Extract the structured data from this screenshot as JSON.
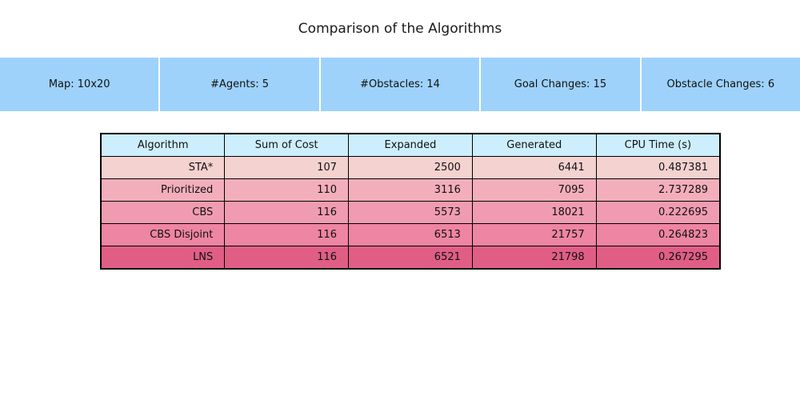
{
  "title": "Comparison of the Algorithms",
  "colors": {
    "info_bar_bg": "#9ed2fb",
    "header_bg": "#cdeefc",
    "border": "#000000",
    "text": "#111111"
  },
  "info_bar": {
    "items": [
      "Map: 10x20",
      "#Agents: 5",
      "#Obstacles: 14",
      "Goal Changes: 15",
      "Obstacle Changes: 6"
    ]
  },
  "table": {
    "headers": [
      "Algorithm",
      "Sum of Cost",
      "Expanded",
      "Generated",
      "CPU Time (s)"
    ],
    "rows": [
      {
        "bg": "#f4d2d0",
        "cells": [
          "STA*",
          "107",
          "2500",
          "6441",
          "0.487381"
        ]
      },
      {
        "bg": "#f3aebb",
        "cells": [
          "Prioritized",
          "110",
          "3116",
          "7095",
          "2.737289"
        ]
      },
      {
        "bg": "#f09cb0",
        "cells": [
          "CBS",
          "116",
          "5573",
          "18021",
          "0.222695"
        ]
      },
      {
        "bg": "#ee85a2",
        "cells": [
          "CBS Disjoint",
          "116",
          "6513",
          "21757",
          "0.264823"
        ]
      },
      {
        "bg": "#e05e86",
        "cells": [
          "LNS",
          "116",
          "6521",
          "21798",
          "0.267295"
        ]
      }
    ]
  },
  "chart_data": {
    "type": "table",
    "title": "Comparison of the Algorithms",
    "columns": [
      "Algorithm",
      "Sum of Cost",
      "Expanded",
      "Generated",
      "CPU Time (s)"
    ],
    "rows": [
      [
        "STA*",
        107,
        2500,
        6441,
        0.487381
      ],
      [
        "Prioritized",
        110,
        3116,
        7095,
        2.737289
      ],
      [
        "CBS",
        116,
        5573,
        18021,
        0.222695
      ],
      [
        "CBS Disjoint",
        116,
        6513,
        21757,
        0.264823
      ],
      [
        "LNS",
        116,
        6521,
        21798,
        0.267295
      ]
    ],
    "annotations": [
      "Map: 10x20",
      "#Agents: 5",
      "#Obstacles: 14",
      "Goal Changes: 15",
      "Obstacle Changes: 6"
    ],
    "layout_hints": {
      "header_fill": "#cdeefc",
      "row_fill_gradient": [
        "#f4d2d0",
        "#e05e86"
      ],
      "info_bar_fill": "#9ed2fb",
      "grid": "black-cell-borders"
    }
  }
}
